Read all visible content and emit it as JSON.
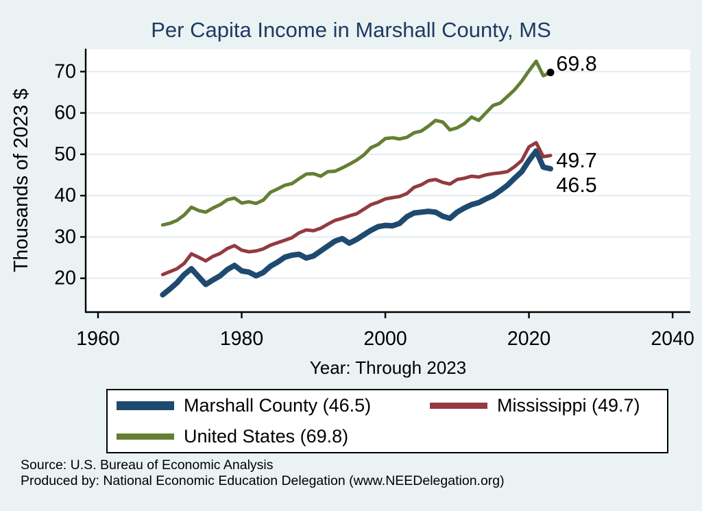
{
  "title": "Per Capita Income in Marshall County, MS",
  "chart_data": {
    "type": "line",
    "title": "Per Capita Income in Marshall County, MS",
    "xlabel": "Year: Through 2023",
    "ylabel": "Thousands of 2023 $",
    "x_ticks": [
      1960,
      1980,
      2000,
      2020,
      2040
    ],
    "y_ticks": [
      20,
      30,
      40,
      50,
      60,
      70
    ],
    "xlim": [
      1958.3,
      2042.5
    ],
    "ylim": [
      11.8,
      75.5
    ],
    "grid": "horizontal",
    "legend_position": "bottom",
    "x": [
      1969,
      1970,
      1971,
      1972,
      1973,
      1974,
      1975,
      1976,
      1977,
      1978,
      1979,
      1980,
      1981,
      1982,
      1983,
      1984,
      1985,
      1986,
      1987,
      1988,
      1989,
      1990,
      1991,
      1992,
      1993,
      1994,
      1995,
      1996,
      1997,
      1998,
      1999,
      2000,
      2001,
      2002,
      2003,
      2004,
      2005,
      2006,
      2007,
      2008,
      2009,
      2010,
      2011,
      2012,
      2013,
      2014,
      2015,
      2016,
      2017,
      2018,
      2019,
      2020,
      2021,
      2022,
      2023
    ],
    "series": [
      {
        "id": "marshall-county",
        "name": "Marshall County (46.5)",
        "color": "#1f4a6f",
        "line_width": 8,
        "final_value": 46.5,
        "values": [
          16.0,
          17.4,
          18.9,
          20.9,
          22.3,
          20.4,
          18.5,
          19.6,
          20.6,
          22.1,
          23.1,
          21.8,
          21.5,
          20.6,
          21.4,
          22.9,
          23.9,
          25.1,
          25.6,
          25.8,
          24.9,
          25.4,
          26.6,
          27.8,
          29.0,
          29.6,
          28.5,
          29.4,
          30.5,
          31.6,
          32.5,
          32.8,
          32.7,
          33.3,
          34.9,
          35.8,
          36.0,
          36.2,
          36.0,
          35.0,
          34.5,
          36.0,
          37.0,
          37.8,
          38.3,
          39.2,
          40.0,
          41.2,
          42.5,
          44.2,
          45.8,
          48.5,
          50.8,
          46.9,
          46.5
        ]
      },
      {
        "id": "mississippi",
        "name": "Mississippi (49.7)",
        "color": "#933a40",
        "line_width": 5,
        "final_value": 49.7,
        "values": [
          20.9,
          21.6,
          22.3,
          23.6,
          25.9,
          25.1,
          24.2,
          25.3,
          26.0,
          27.2,
          27.9,
          26.8,
          26.4,
          26.6,
          27.1,
          28.0,
          28.6,
          29.2,
          29.8,
          31.0,
          31.7,
          31.5,
          32.1,
          33.1,
          34.0,
          34.5,
          35.1,
          35.6,
          36.7,
          37.8,
          38.4,
          39.2,
          39.5,
          39.8,
          40.5,
          42.0,
          42.6,
          43.6,
          43.9,
          43.2,
          42.8,
          43.9,
          44.2,
          44.7,
          44.5,
          45.0,
          45.3,
          45.5,
          45.8,
          47.0,
          48.5,
          51.8,
          52.8,
          49.4,
          49.7
        ]
      },
      {
        "id": "united-states",
        "name": "United States (69.8)",
        "color": "#647f33",
        "line_width": 5,
        "final_value": 69.8,
        "values": [
          32.9,
          33.3,
          34.0,
          35.3,
          37.2,
          36.4,
          36.0,
          37.0,
          37.8,
          39.0,
          39.4,
          38.2,
          38.5,
          38.1,
          38.9,
          40.8,
          41.6,
          42.5,
          42.9,
          44.1,
          45.2,
          45.3,
          44.7,
          45.8,
          45.9,
          46.7,
          47.6,
          48.6,
          49.8,
          51.6,
          52.4,
          53.8,
          54.0,
          53.7,
          54.1,
          55.2,
          55.6,
          56.8,
          58.2,
          57.8,
          55.9,
          56.4,
          57.4,
          59.0,
          58.2,
          60.0,
          61.8,
          62.4,
          64.0,
          65.6,
          67.7,
          70.2,
          72.5,
          69.0,
          69.8
        ]
      }
    ],
    "end_dot": {
      "year": 2023,
      "value": 69.8,
      "color": "#000000"
    },
    "annotations": [
      {
        "text": "69.8",
        "year": 2023.8,
        "value": 72.0
      },
      {
        "text": "49.7",
        "year": 2023.8,
        "value": 48.6
      },
      {
        "text": "46.5",
        "year": 2023.8,
        "value": 42.6
      }
    ]
  },
  "legend": {
    "items": [
      {
        "label": "Marshall County (46.5)",
        "color": "#1f4a6f",
        "swatch_height": 13,
        "cell": "r1c1"
      },
      {
        "label": "Mississippi (49.7)",
        "color": "#933a40",
        "swatch_height": 9,
        "cell": "r1c2"
      },
      {
        "label": "United States (69.8)",
        "color": "#647f33",
        "swatch_height": 9,
        "cell": "r2c1"
      }
    ]
  },
  "footer": {
    "source": "Source: U.S. Bureau of Economic Analysis",
    "produced_by": "Produced by: National Economic Education Delegation (www.NEEDelegation.org)"
  },
  "colors": {
    "background": "#eaf2f3",
    "plot_background": "#ffffff",
    "gridline": "#dce9ee",
    "axis": "#000000",
    "title": "#1e3a63",
    "text": "#000000"
  }
}
